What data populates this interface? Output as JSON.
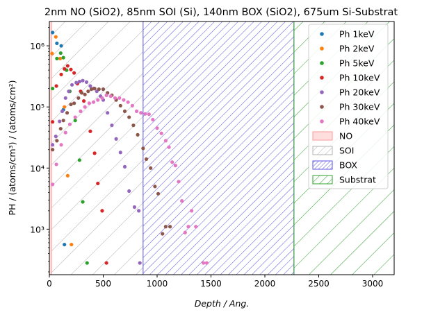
{
  "chart_data": {
    "type": "scatter",
    "title": "2nm NO (SiO2), 85nm SOI (Si), 140nm BOX (SiO2), 675um Si-Substrat",
    "xlabel": "Depth / Ang.",
    "ylabel": "PH / (atoms/cm³) / (atoms/cm²)",
    "xlim": [
      0,
      3200
    ],
    "ylim": [
      180,
      2500000
    ],
    "yscale": "log",
    "grid": false,
    "legend_position": "top-right",
    "x_ticks": [
      0,
      500,
      1000,
      1500,
      2000,
      2500,
      3000
    ],
    "y_ticks": [
      {
        "value": 1000,
        "label": "10³"
      },
      {
        "value": 10000,
        "label": "10⁴"
      },
      {
        "value": 100000,
        "label": "10⁵"
      },
      {
        "value": 1000000,
        "label": "10⁶"
      }
    ],
    "layers": [
      {
        "name": "NO",
        "x_start": 0,
        "x_end": 20,
        "color": "#ff9999",
        "hatch": "solid"
      },
      {
        "name": "SOI",
        "x_start": 20,
        "x_end": 870,
        "color": "#b0b0b0",
        "hatch": "diagonal"
      },
      {
        "name": "BOX",
        "x_start": 870,
        "x_end": 2270,
        "color": "#5b52e0",
        "hatch": "diagonal-dense"
      },
      {
        "name": "Substrat",
        "x_start": 2270,
        "x_end": 3200,
        "color": "#2ca02c",
        "hatch": "diagonal"
      }
    ],
    "series": [
      {
        "name": "Ph 1keV",
        "color": "#1f77b4",
        "points": [
          [
            30,
            1650000
          ],
          [
            70,
            1100000
          ],
          [
            110,
            1000000
          ],
          [
            130,
            90000
          ],
          [
            140,
            560
          ]
        ]
      },
      {
        "name": "Ph 2keV",
        "color": "#ff7f0e",
        "points": [
          [
            25,
            750000
          ],
          [
            60,
            1400000
          ],
          [
            100,
            620000
          ],
          [
            140,
            100000
          ],
          [
            170,
            7500
          ],
          [
            205,
            560
          ]
        ]
      },
      {
        "name": "Ph 5keV",
        "color": "#2ca02c",
        "points": [
          [
            30,
            200000
          ],
          [
            70,
            620000
          ],
          [
            105,
            760000
          ],
          [
            130,
            640000
          ],
          [
            160,
            400000
          ],
          [
            190,
            180000
          ],
          [
            240,
            60000
          ],
          [
            280,
            13500
          ],
          [
            310,
            2800
          ],
          [
            350,
            280
          ]
        ]
      },
      {
        "name": "Ph 10keV",
        "color": "#d62728",
        "points": [
          [
            30,
            57000
          ],
          [
            65,
            220000
          ],
          [
            110,
            340000
          ],
          [
            140,
            420000
          ],
          [
            170,
            470000
          ],
          [
            200,
            410000
          ],
          [
            230,
            360000
          ],
          [
            260,
            240000
          ],
          [
            290,
            180000
          ],
          [
            320,
            125000
          ],
          [
            380,
            40000
          ],
          [
            420,
            17500
          ],
          [
            450,
            5600
          ],
          [
            490,
            2000
          ],
          [
            530,
            280
          ]
        ]
      },
      {
        "name": "Ph 20keV",
        "color": "#9467bd",
        "points": [
          [
            30,
            24000
          ],
          [
            60,
            33000
          ],
          [
            95,
            58000
          ],
          [
            120,
            85000
          ],
          [
            150,
            140000
          ],
          [
            180,
            180000
          ],
          [
            210,
            230000
          ],
          [
            250,
            250000
          ],
          [
            280,
            260000
          ],
          [
            310,
            270000
          ],
          [
            345,
            255000
          ],
          [
            380,
            220000
          ],
          [
            410,
            200000
          ],
          [
            440,
            180000
          ],
          [
            475,
            150000
          ],
          [
            500,
            130000
          ],
          [
            540,
            80000
          ],
          [
            580,
            50000
          ],
          [
            620,
            30000
          ],
          [
            660,
            18000
          ],
          [
            700,
            10500
          ],
          [
            740,
            4200
          ],
          [
            790,
            2300
          ],
          [
            830,
            2000
          ],
          [
            840,
            280
          ]
        ]
      },
      {
        "name": "Ph 30keV",
        "color": "#8c564b",
        "points": [
          [
            30,
            20000
          ],
          [
            70,
            28000
          ],
          [
            105,
            44000
          ],
          [
            130,
            60000
          ],
          [
            165,
            80000
          ],
          [
            200,
            110000
          ],
          [
            230,
            115000
          ],
          [
            270,
            140000
          ],
          [
            300,
            170000
          ],
          [
            330,
            160000
          ],
          [
            360,
            180000
          ],
          [
            390,
            195000
          ],
          [
            420,
            200000
          ],
          [
            460,
            195000
          ],
          [
            500,
            195000
          ],
          [
            540,
            170000
          ],
          [
            580,
            155000
          ],
          [
            620,
            130000
          ],
          [
            660,
            105000
          ],
          [
            700,
            85000
          ],
          [
            740,
            68000
          ],
          [
            780,
            50000
          ],
          [
            820,
            35000
          ],
          [
            870,
            21000
          ],
          [
            900,
            14000
          ],
          [
            940,
            10000
          ],
          [
            980,
            5000
          ],
          [
            1010,
            3800
          ],
          [
            1050,
            840
          ],
          [
            1080,
            1100
          ],
          [
            1120,
            1100
          ]
        ]
      },
      {
        "name": "Ph 40keV",
        "color": "#e377c2",
        "points": [
          [
            30,
            5400
          ],
          [
            65,
            11500
          ],
          [
            110,
            24000
          ],
          [
            150,
            38000
          ],
          [
            190,
            52000
          ],
          [
            240,
            68000
          ],
          [
            290,
            85000
          ],
          [
            330,
            100000
          ],
          [
            370,
            115000
          ],
          [
            410,
            120000
          ],
          [
            450,
            130000
          ],
          [
            490,
            140000
          ],
          [
            530,
            155000
          ],
          [
            570,
            150000
          ],
          [
            610,
            140000
          ],
          [
            650,
            140000
          ],
          [
            690,
            130000
          ],
          [
            730,
            120000
          ],
          [
            770,
            105000
          ],
          [
            810,
            85000
          ],
          [
            850,
            80000
          ],
          [
            890,
            77000
          ],
          [
            925,
            76000
          ],
          [
            960,
            62000
          ],
          [
            1000,
            45000
          ],
          [
            1040,
            37000
          ],
          [
            1080,
            28000
          ],
          [
            1110,
            22000
          ],
          [
            1140,
            12500
          ],
          [
            1170,
            11000
          ],
          [
            1200,
            6000
          ],
          [
            1230,
            2900
          ],
          [
            1260,
            880
          ],
          [
            1290,
            1100
          ],
          [
            1320,
            2000
          ],
          [
            1360,
            1100
          ],
          [
            1430,
            280
          ],
          [
            1460,
            280
          ]
        ]
      }
    ]
  }
}
